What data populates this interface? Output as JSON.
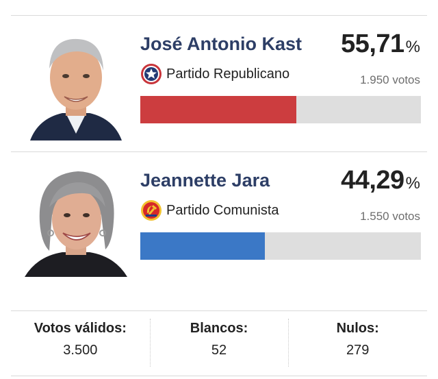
{
  "candidates": [
    {
      "name": "José Antonio Kast",
      "party": "Partido Republicano",
      "party_icon": "republicano-star-icon",
      "percent": "55,71",
      "percent_sign": "%",
      "percent_value": 55.71,
      "votes": "1.950 votos",
      "bar_color": "#cc3d3f",
      "photo": "candidate-photo-kast"
    },
    {
      "name": "Jeannette Jara",
      "party": "Partido Comunista",
      "party_icon": "comunista-hammer-sickle-icon",
      "percent": "44,29",
      "percent_sign": "%",
      "percent_value": 44.29,
      "votes": "1.550 votos",
      "bar_color": "#3b78c6",
      "photo": "candidate-photo-jara"
    }
  ],
  "stats": [
    {
      "label": "Votos válidos:",
      "value": "3.500"
    },
    {
      "label": "Blancos:",
      "value": "52"
    },
    {
      "label": "Nulos:",
      "value": "279"
    }
  ],
  "colors": {
    "name": "#2d3e66",
    "bar_track": "#dedede",
    "divider": "#d9d9d9"
  }
}
